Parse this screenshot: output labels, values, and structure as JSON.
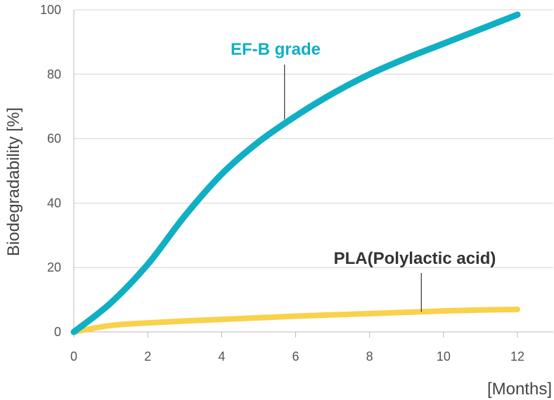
{
  "chart_data": {
    "type": "line",
    "title": "",
    "xlabel": "[Months]",
    "ylabel": "Biodegradability [%]",
    "xlim": [
      0,
      12
    ],
    "ylim": [
      0,
      100
    ],
    "xticks": [
      "0",
      "2",
      "4",
      "6",
      "8",
      "10",
      "12"
    ],
    "yticks": [
      "0",
      "20",
      "40",
      "60",
      "80",
      "100"
    ],
    "grid": "horizontal",
    "legend": "none (direct labels on lines)",
    "series": [
      {
        "name": "EF-B grade",
        "color": "#0FAFC4",
        "x": [
          0,
          1,
          2,
          3,
          4,
          5,
          6,
          7,
          8,
          9,
          10,
          11,
          12
        ],
        "y": [
          0,
          9,
          21,
          36,
          49,
          59,
          67,
          74,
          80,
          85,
          89.5,
          94,
          98.5
        ]
      },
      {
        "name": "PLA(Polylactic acid)",
        "color": "#F9D24B",
        "x": [
          0,
          1,
          2,
          3,
          4,
          5,
          6,
          7,
          8,
          9,
          10,
          11,
          12
        ],
        "y": [
          0,
          2,
          2.8,
          3.4,
          3.9,
          4.4,
          4.9,
          5.3,
          5.7,
          6.1,
          6.5,
          6.8,
          7
        ]
      }
    ],
    "annotations": [
      {
        "text": "EF-B grade",
        "series": 0,
        "x": 5.7,
        "y": 66,
        "color": "#0FAFC4"
      },
      {
        "text": "PLA(Polylactic acid)",
        "series": 1,
        "x": 9.4,
        "y": 6.2,
        "color": "#333333"
      }
    ]
  }
}
